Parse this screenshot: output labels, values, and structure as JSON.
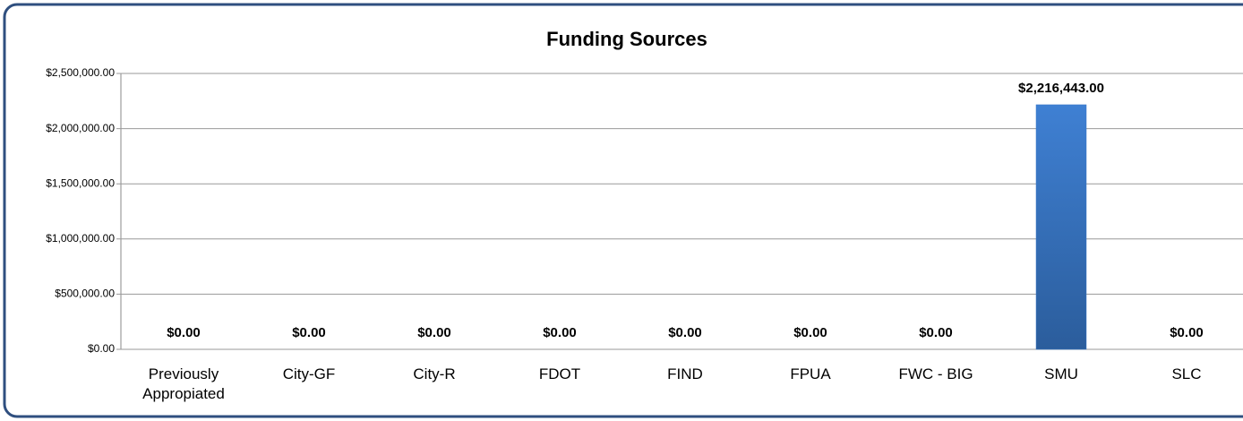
{
  "chart_data": {
    "type": "bar",
    "title": "Funding Sources",
    "categories": [
      "Previously Appropiated",
      "City-GF",
      "City-R",
      "FDOT",
      "FIND",
      "FPUA",
      "FWC - BIG",
      "SMU",
      "SLC"
    ],
    "values": [
      0,
      0,
      0,
      0,
      0,
      0,
      0,
      2216443,
      0
    ],
    "value_labels": [
      "$0.00",
      "$0.00",
      "$0.00",
      "$0.00",
      "$0.00",
      "$0.00",
      "$0.00",
      "$2,216,443.00",
      "$0.00"
    ],
    "color": "#3a78c8",
    "ylim": [
      0,
      2500000
    ],
    "yticks": [
      {
        "value": 0,
        "label": "$0.00"
      },
      {
        "value": 500000,
        "label": "$500,000.00"
      },
      {
        "value": 1000000,
        "label": "$1,000,000.00"
      },
      {
        "value": 1500000,
        "label": "$1,500,000.00"
      },
      {
        "value": 2000000,
        "label": "$2,000,000.00"
      },
      {
        "value": 2500000,
        "label": "$2,500,000.00"
      }
    ],
    "grid": true
  }
}
